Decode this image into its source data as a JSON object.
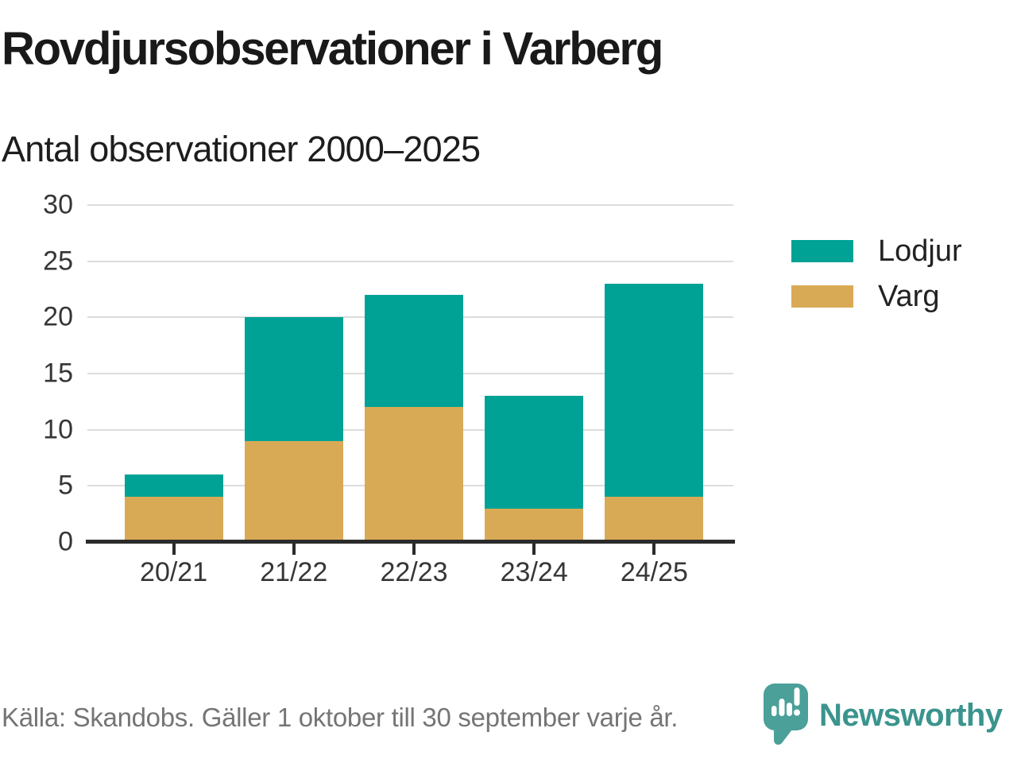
{
  "chart_data": {
    "type": "bar",
    "stacked": true,
    "title": "Rovdjursobservationer i Varberg",
    "subtitle": "Antal observationer 2000–2025",
    "categories": [
      "20/21",
      "21/22",
      "22/23",
      "23/24",
      "24/25"
    ],
    "series": [
      {
        "name": "Lodjur",
        "color": "#00a296",
        "values": [
          2,
          11,
          10,
          10,
          19
        ]
      },
      {
        "name": "Varg",
        "color": "#d9aa55",
        "values": [
          4,
          9,
          12,
          3,
          4
        ]
      }
    ],
    "totals": [
      6,
      20,
      22,
      13,
      23
    ],
    "xlabel": "",
    "ylabel": "",
    "ylim": [
      0,
      30
    ],
    "yticks": [
      0,
      5,
      10,
      15,
      20,
      25,
      30
    ],
    "grid": true,
    "legend_position": "right",
    "gridline_color": "#dcdcdc",
    "axis_color": "#2b2b2b"
  },
  "footer": {
    "source": "Källa: Skandobs. Gäller 1 oktober till 30 september varje år.",
    "brand": "Newsworthy",
    "brand_color": "#3a948d",
    "logo_color": "#4ba099"
  }
}
